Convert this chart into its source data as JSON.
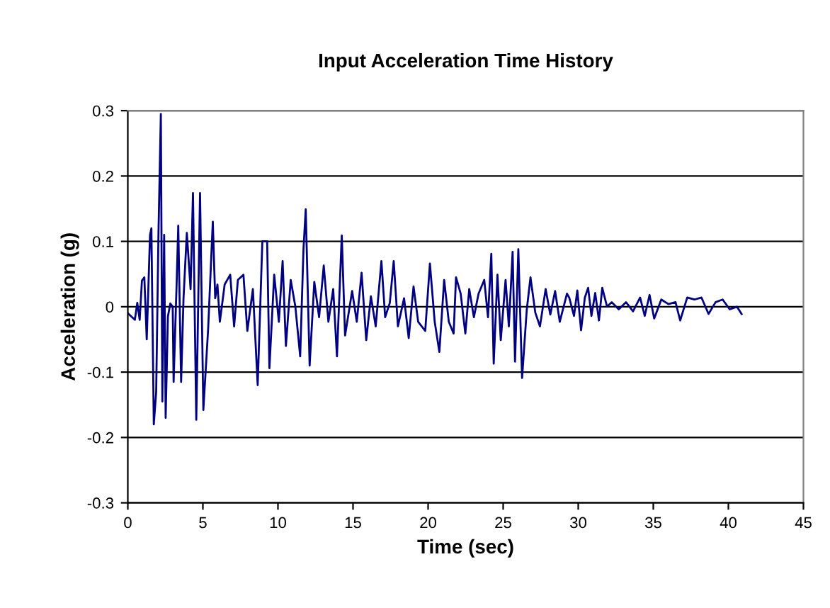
{
  "chart_data": {
    "type": "line",
    "title": "Input Acceleration Time History",
    "xlabel": "Time (sec)",
    "ylabel": "Acceleration (g)",
    "xlim": [
      0,
      45
    ],
    "xticks": [
      0,
      5,
      10,
      15,
      20,
      25,
      30,
      35,
      40,
      45
    ],
    "ylim": [
      -0.3,
      0.3
    ],
    "yticks": [
      -0.3,
      -0.2,
      -0.1,
      0,
      0.1,
      0.2,
      0.3
    ],
    "grid": "y",
    "marker": "none",
    "line_style": "solid",
    "series": [
      {
        "color": "#000080",
        "x": [
          0.0,
          0.47,
          0.63,
          0.79,
          0.94,
          1.1,
          1.26,
          1.48,
          1.57,
          1.73,
          1.89,
          2.04,
          2.2,
          2.3,
          2.42,
          2.52,
          2.67,
          2.83,
          2.99,
          3.05,
          3.24,
          3.36,
          3.55,
          3.71,
          3.93,
          4.18,
          4.34,
          4.56,
          4.81,
          5.03,
          5.35,
          5.66,
          5.82,
          5.97,
          6.13,
          6.45,
          6.82,
          7.08,
          7.33,
          7.7,
          7.96,
          8.33,
          8.65,
          8.96,
          9.28,
          9.43,
          9.75,
          10.06,
          10.31,
          10.53,
          10.85,
          11.16,
          11.48,
          11.7,
          11.85,
          12.11,
          12.42,
          12.74,
          13.05,
          13.36,
          13.68,
          13.93,
          14.25,
          14.47,
          14.94,
          15.25,
          15.57,
          15.88,
          16.19,
          16.51,
          16.89,
          17.14,
          17.45,
          17.71,
          17.99,
          18.4,
          18.71,
          19.03,
          19.34,
          19.81,
          20.12,
          20.44,
          20.75,
          21.07,
          21.38,
          21.7,
          21.86,
          22.17,
          22.48,
          22.74,
          23.05,
          23.36,
          23.74,
          23.99,
          24.21,
          24.37,
          24.62,
          24.84,
          25.16,
          25.38,
          25.63,
          25.79,
          26.01,
          26.26,
          26.57,
          26.82,
          27.14,
          27.45,
          27.83,
          28.14,
          28.46,
          28.77,
          29.25,
          29.4,
          29.72,
          29.94,
          30.19,
          30.44,
          30.66,
          30.88,
          31.13,
          31.38,
          31.6,
          31.92,
          32.23,
          32.7,
          33.18,
          33.65,
          34.12,
          34.43,
          34.75,
          35.06,
          35.53,
          36.01,
          36.48,
          36.79,
          37.26,
          37.74,
          38.21,
          38.68,
          39.15,
          39.62,
          40.09,
          40.57,
          40.88
        ],
        "values": [
          -0.01,
          -0.02,
          0.006,
          -0.02,
          0.04,
          0.045,
          -0.05,
          0.11,
          0.12,
          -0.18,
          -0.13,
          0.11,
          0.295,
          -0.145,
          0.11,
          -0.17,
          -0.015,
          0.005,
          0.0,
          -0.115,
          0.027,
          0.124,
          -0.115,
          0.013,
          0.113,
          0.027,
          0.174,
          -0.173,
          0.174,
          -0.158,
          -0.034,
          0.13,
          0.013,
          0.034,
          -0.023,
          0.034,
          0.049,
          -0.03,
          0.041,
          0.049,
          -0.037,
          0.027,
          -0.12,
          0.1,
          0.1,
          -0.094,
          0.049,
          -0.023,
          0.07,
          -0.06,
          0.041,
          0.0,
          -0.076,
          0.088,
          0.149,
          -0.09,
          0.038,
          -0.016,
          0.063,
          -0.023,
          0.027,
          -0.076,
          0.109,
          -0.044,
          0.024,
          -0.023,
          0.052,
          -0.051,
          0.016,
          -0.03,
          0.07,
          -0.016,
          0.006,
          0.07,
          -0.03,
          0.013,
          -0.048,
          0.031,
          -0.023,
          -0.037,
          0.066,
          -0.023,
          -0.069,
          0.041,
          -0.023,
          -0.041,
          0.045,
          0.02,
          -0.041,
          0.027,
          -0.016,
          0.02,
          0.041,
          -0.016,
          0.081,
          -0.087,
          0.049,
          -0.051,
          0.041,
          -0.03,
          0.084,
          -0.084,
          0.088,
          -0.109,
          -0.005,
          0.045,
          -0.009,
          -0.03,
          0.027,
          -0.012,
          0.024,
          -0.023,
          0.02,
          0.014,
          -0.014,
          0.025,
          -0.036,
          0.014,
          0.029,
          -0.014,
          0.021,
          -0.021,
          0.029,
          0.0,
          0.007,
          -0.004,
          0.007,
          -0.007,
          0.014,
          -0.014,
          0.018,
          -0.018,
          0.011,
          0.004,
          0.007,
          -0.021,
          0.014,
          0.011,
          0.014,
          -0.011,
          0.007,
          0.011,
          -0.004,
          0.0,
          -0.011
        ]
      }
    ]
  }
}
